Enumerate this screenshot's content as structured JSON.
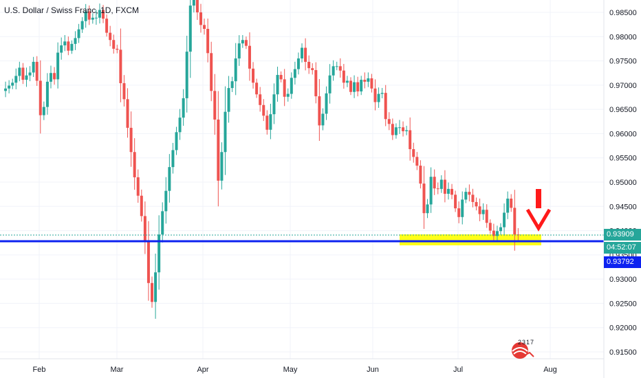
{
  "title": "U.S. Dollar / Swiss Franc, 1D, FXCM",
  "colors": {
    "up": "#26a69a",
    "down": "#ef5350",
    "support_line": "#0d22f0",
    "support_zone": "#ffff00",
    "arrow": "#ff1a1a",
    "last_price_line": "#26a69a",
    "grid": "#f0f3fa"
  },
  "tags": {
    "last_price": "0.93909",
    "countdown": "04:52:07",
    "support_price": "0.93792"
  },
  "logo_text": "2317",
  "annotations": {
    "support_zone": {
      "y_range": [
        0.937,
        0.9392
      ],
      "x_range": [
        "Jun 12",
        "Jul 26"
      ]
    },
    "arrow": {
      "direction": "down",
      "at": "Jul 27"
    }
  },
  "chart_data": {
    "type": "candlestick",
    "symbol": "USDCHF",
    "timeframe": "1D",
    "y_ticks": [
      "0.98500",
      "0.98000",
      "0.97500",
      "0.97000",
      "0.96500",
      "0.96000",
      "0.95500",
      "0.95000",
      "0.94500",
      "0.94000",
      "0.93500",
      "0.93000",
      "0.92500",
      "0.92000",
      "0.91500"
    ],
    "x_labels": [
      "Feb",
      "Mar",
      "Apr",
      "May",
      "Jun",
      "Jul",
      "Aug"
    ],
    "ylim": [
      0.914,
      0.9882
    ],
    "support_level": 0.93792,
    "last_price": 0.93909,
    "grid": true,
    "closes": [
      0.9688,
      0.9693,
      0.9699,
      0.9705,
      0.9719,
      0.9736,
      0.9711,
      0.972,
      0.9726,
      0.9748,
      0.9709,
      0.9638,
      0.9655,
      0.9707,
      0.9725,
      0.9712,
      0.9767,
      0.9782,
      0.979,
      0.9771,
      0.9785,
      0.9797,
      0.9815,
      0.9832,
      0.9852,
      0.9835,
      0.9839,
      0.9839,
      0.9855,
      0.9837,
      0.9808,
      0.9793,
      0.9775,
      0.9773,
      0.9704,
      0.9671,
      0.9612,
      0.9562,
      0.951,
      0.9472,
      0.943,
      0.9379,
      0.9292,
      0.9253,
      0.9314,
      0.9392,
      0.944,
      0.9482,
      0.9531,
      0.9566,
      0.9603,
      0.9633,
      0.9673,
      0.9769,
      0.9864,
      0.9895,
      0.985,
      0.9824,
      0.9816,
      0.9766,
      0.9688,
      0.9629,
      0.9503,
      0.9562,
      0.9645,
      0.9694,
      0.9708,
      0.9755,
      0.9786,
      0.9793,
      0.9781,
      0.9734,
      0.9705,
      0.9681,
      0.9659,
      0.9637,
      0.9608,
      0.964,
      0.9681,
      0.9721,
      0.9712,
      0.9676,
      0.9682,
      0.9715,
      0.9733,
      0.9755,
      0.9777,
      0.9748,
      0.9735,
      0.9731,
      0.9677,
      0.9617,
      0.9641,
      0.9683,
      0.972,
      0.9739,
      0.9739,
      0.973,
      0.9705,
      0.9709,
      0.9686,
      0.9706,
      0.9687,
      0.9711,
      0.9707,
      0.9714,
      0.9693,
      0.9665,
      0.9682,
      0.9684,
      0.963,
      0.962,
      0.9597,
      0.9613,
      0.9613,
      0.9605,
      0.9607,
      0.9568,
      0.9552,
      0.9534,
      0.9497,
      0.9436,
      0.9454,
      0.9511,
      0.9487,
      0.9486,
      0.9505,
      0.9476,
      0.9486,
      0.9474,
      0.9446,
      0.9428,
      0.9464,
      0.948,
      0.9474,
      0.9459,
      0.945,
      0.9434,
      0.9443,
      0.9416,
      0.94,
      0.9389,
      0.9399,
      0.9407,
      0.9437,
      0.9466,
      0.9447,
      0.9392,
      0.9391
    ]
  }
}
